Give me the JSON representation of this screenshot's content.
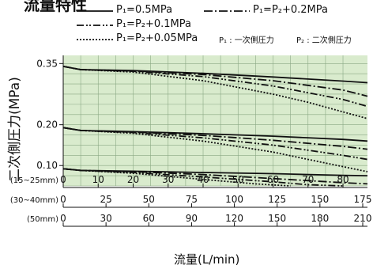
{
  "header": {
    "title_partial": "流量特性"
  },
  "legend": {
    "items": [
      {
        "label": "P₁=0.5MPa",
        "style": "solid"
      },
      {
        "label": "P₁=P₂+0.2MPa",
        "style": "dashdot"
      },
      {
        "label": "P₁=P₂+0.1MPa",
        "style": "dashdotdot"
      },
      {
        "label": "P₁=P₂+0.05MPa",
        "style": "dotted"
      }
    ],
    "note1": "P₁ : 一次側圧力",
    "note2": "P₂ : 二次側圧力"
  },
  "chart_data": {
    "type": "line",
    "title": "",
    "xlabel": "流量(L/min)",
    "ylabel": "二次側圧力(MPa)",
    "ylim": [
      0.05,
      0.37
    ],
    "xlim": [
      0,
      87
    ],
    "y_ticks": [
      "0.35",
      "0.20",
      "0.10"
    ],
    "x_axes": [
      {
        "label": "(15~25mm)",
        "ticks": [
          "0",
          "10",
          "20",
          "30",
          "40",
          "50",
          "60",
          "70",
          "80"
        ]
      },
      {
        "label": "(30~40mm)",
        "ticks": [
          "0",
          "25",
          "50",
          "75",
          "100",
          "125",
          "150",
          "175"
        ]
      },
      {
        "label": "(50mm)",
        "ticks": [
          "0",
          "30",
          "60",
          "90",
          "120",
          "150",
          "180",
          "210"
        ]
      }
    ],
    "grid": true,
    "series_groups": [
      {
        "set_pressure": 0.35,
        "series": [
          {
            "style": "solid",
            "x": [
              0,
              5,
              20,
              40,
              60,
              80,
              87
            ],
            "y": [
              0.343,
              0.335,
              0.333,
              0.326,
              0.317,
              0.307,
              0.303
            ]
          },
          {
            "style": "dashdot",
            "x": [
              0,
              5,
              20,
              40,
              60,
              80,
              87
            ],
            "y": [
              0.343,
              0.335,
              0.332,
              0.323,
              0.308,
              0.285,
              0.27
            ]
          },
          {
            "style": "dashdotdot",
            "x": [
              0,
              5,
              20,
              40,
              60,
              80,
              87
            ],
            "y": [
              0.343,
              0.335,
              0.331,
              0.318,
              0.295,
              0.262,
              0.245
            ]
          },
          {
            "style": "dotted",
            "x": [
              0,
              5,
              20,
              40,
              60,
              70,
              87
            ],
            "y": [
              0.343,
              0.335,
              0.329,
              0.308,
              0.275,
              0.255,
              0.215
            ]
          }
        ]
      },
      {
        "set_pressure": 0.2,
        "series": [
          {
            "style": "solid",
            "x": [
              0,
              5,
              20,
              40,
              60,
              80,
              87
            ],
            "y": [
              0.193,
              0.186,
              0.183,
              0.178,
              0.172,
              0.164,
              0.16
            ]
          },
          {
            "style": "dashdot",
            "x": [
              0,
              5,
              20,
              40,
              60,
              80,
              87
            ],
            "y": [
              0.193,
              0.186,
              0.182,
              0.174,
              0.162,
              0.147,
              0.14
            ]
          },
          {
            "style": "dashdotdot",
            "x": [
              0,
              5,
              20,
              40,
              60,
              80,
              87
            ],
            "y": [
              0.193,
              0.186,
              0.181,
              0.168,
              0.15,
              0.125,
              0.115
            ]
          },
          {
            "style": "dotted",
            "x": [
              0,
              5,
              20,
              40,
              60,
              70,
              87
            ],
            "y": [
              0.193,
              0.186,
              0.179,
              0.16,
              0.133,
              0.115,
              0.085
            ]
          }
        ]
      },
      {
        "set_pressure": 0.1,
        "series": [
          {
            "style": "solid",
            "x": [
              0,
              5,
              20,
              40,
              60,
              80,
              87
            ],
            "y": [
              0.092,
              0.088,
              0.086,
              0.083,
              0.08,
              0.076,
              0.075
            ]
          },
          {
            "style": "dashdot",
            "x": [
              0,
              5,
              20,
              40,
              60,
              80,
              87
            ],
            "y": [
              0.092,
              0.088,
              0.085,
              0.078,
              0.068,
              0.058,
              0.055
            ]
          },
          {
            "style": "dashdotdot",
            "x": [
              0,
              5,
              20,
              40,
              60,
              70,
              80
            ],
            "y": [
              0.092,
              0.088,
              0.083,
              0.072,
              0.06,
              0.053,
              0.05
            ]
          },
          {
            "style": "dotted",
            "x": [
              0,
              5,
              20,
              40,
              55,
              65
            ],
            "y": [
              0.092,
              0.088,
              0.081,
              0.066,
              0.055,
              0.05
            ]
          }
        ]
      }
    ],
    "colors": {
      "plot_bg": "#d9ebcd",
      "grid": "#8aa884",
      "line": "#111111"
    }
  }
}
